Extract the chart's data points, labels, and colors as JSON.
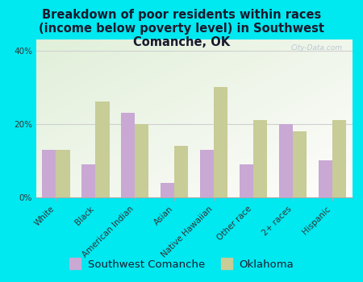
{
  "title": "Breakdown of poor residents within races\n(income below poverty level) in Southwest\nComanche, OK",
  "categories": [
    "White",
    "Black",
    "American Indian",
    "Asian",
    "Native Hawaiian",
    "Other race",
    "2+ races",
    "Hispanic"
  ],
  "southwest_comanche": [
    13,
    9,
    23,
    4,
    13,
    9,
    20,
    10
  ],
  "oklahoma": [
    13,
    26,
    20,
    14,
    30,
    21,
    18,
    21
  ],
  "bar_color_sc": "#c9a8d4",
  "bar_color_ok": "#c8cc96",
  "background_outer": "#00e8f0",
  "grid_color": "#d0d0d0",
  "yticks": [
    0,
    20,
    40
  ],
  "ylim": [
    0,
    43
  ],
  "title_fontsize": 10.5,
  "tick_fontsize": 7.5,
  "legend_fontsize": 9.5,
  "watermark": "City-Data.com"
}
